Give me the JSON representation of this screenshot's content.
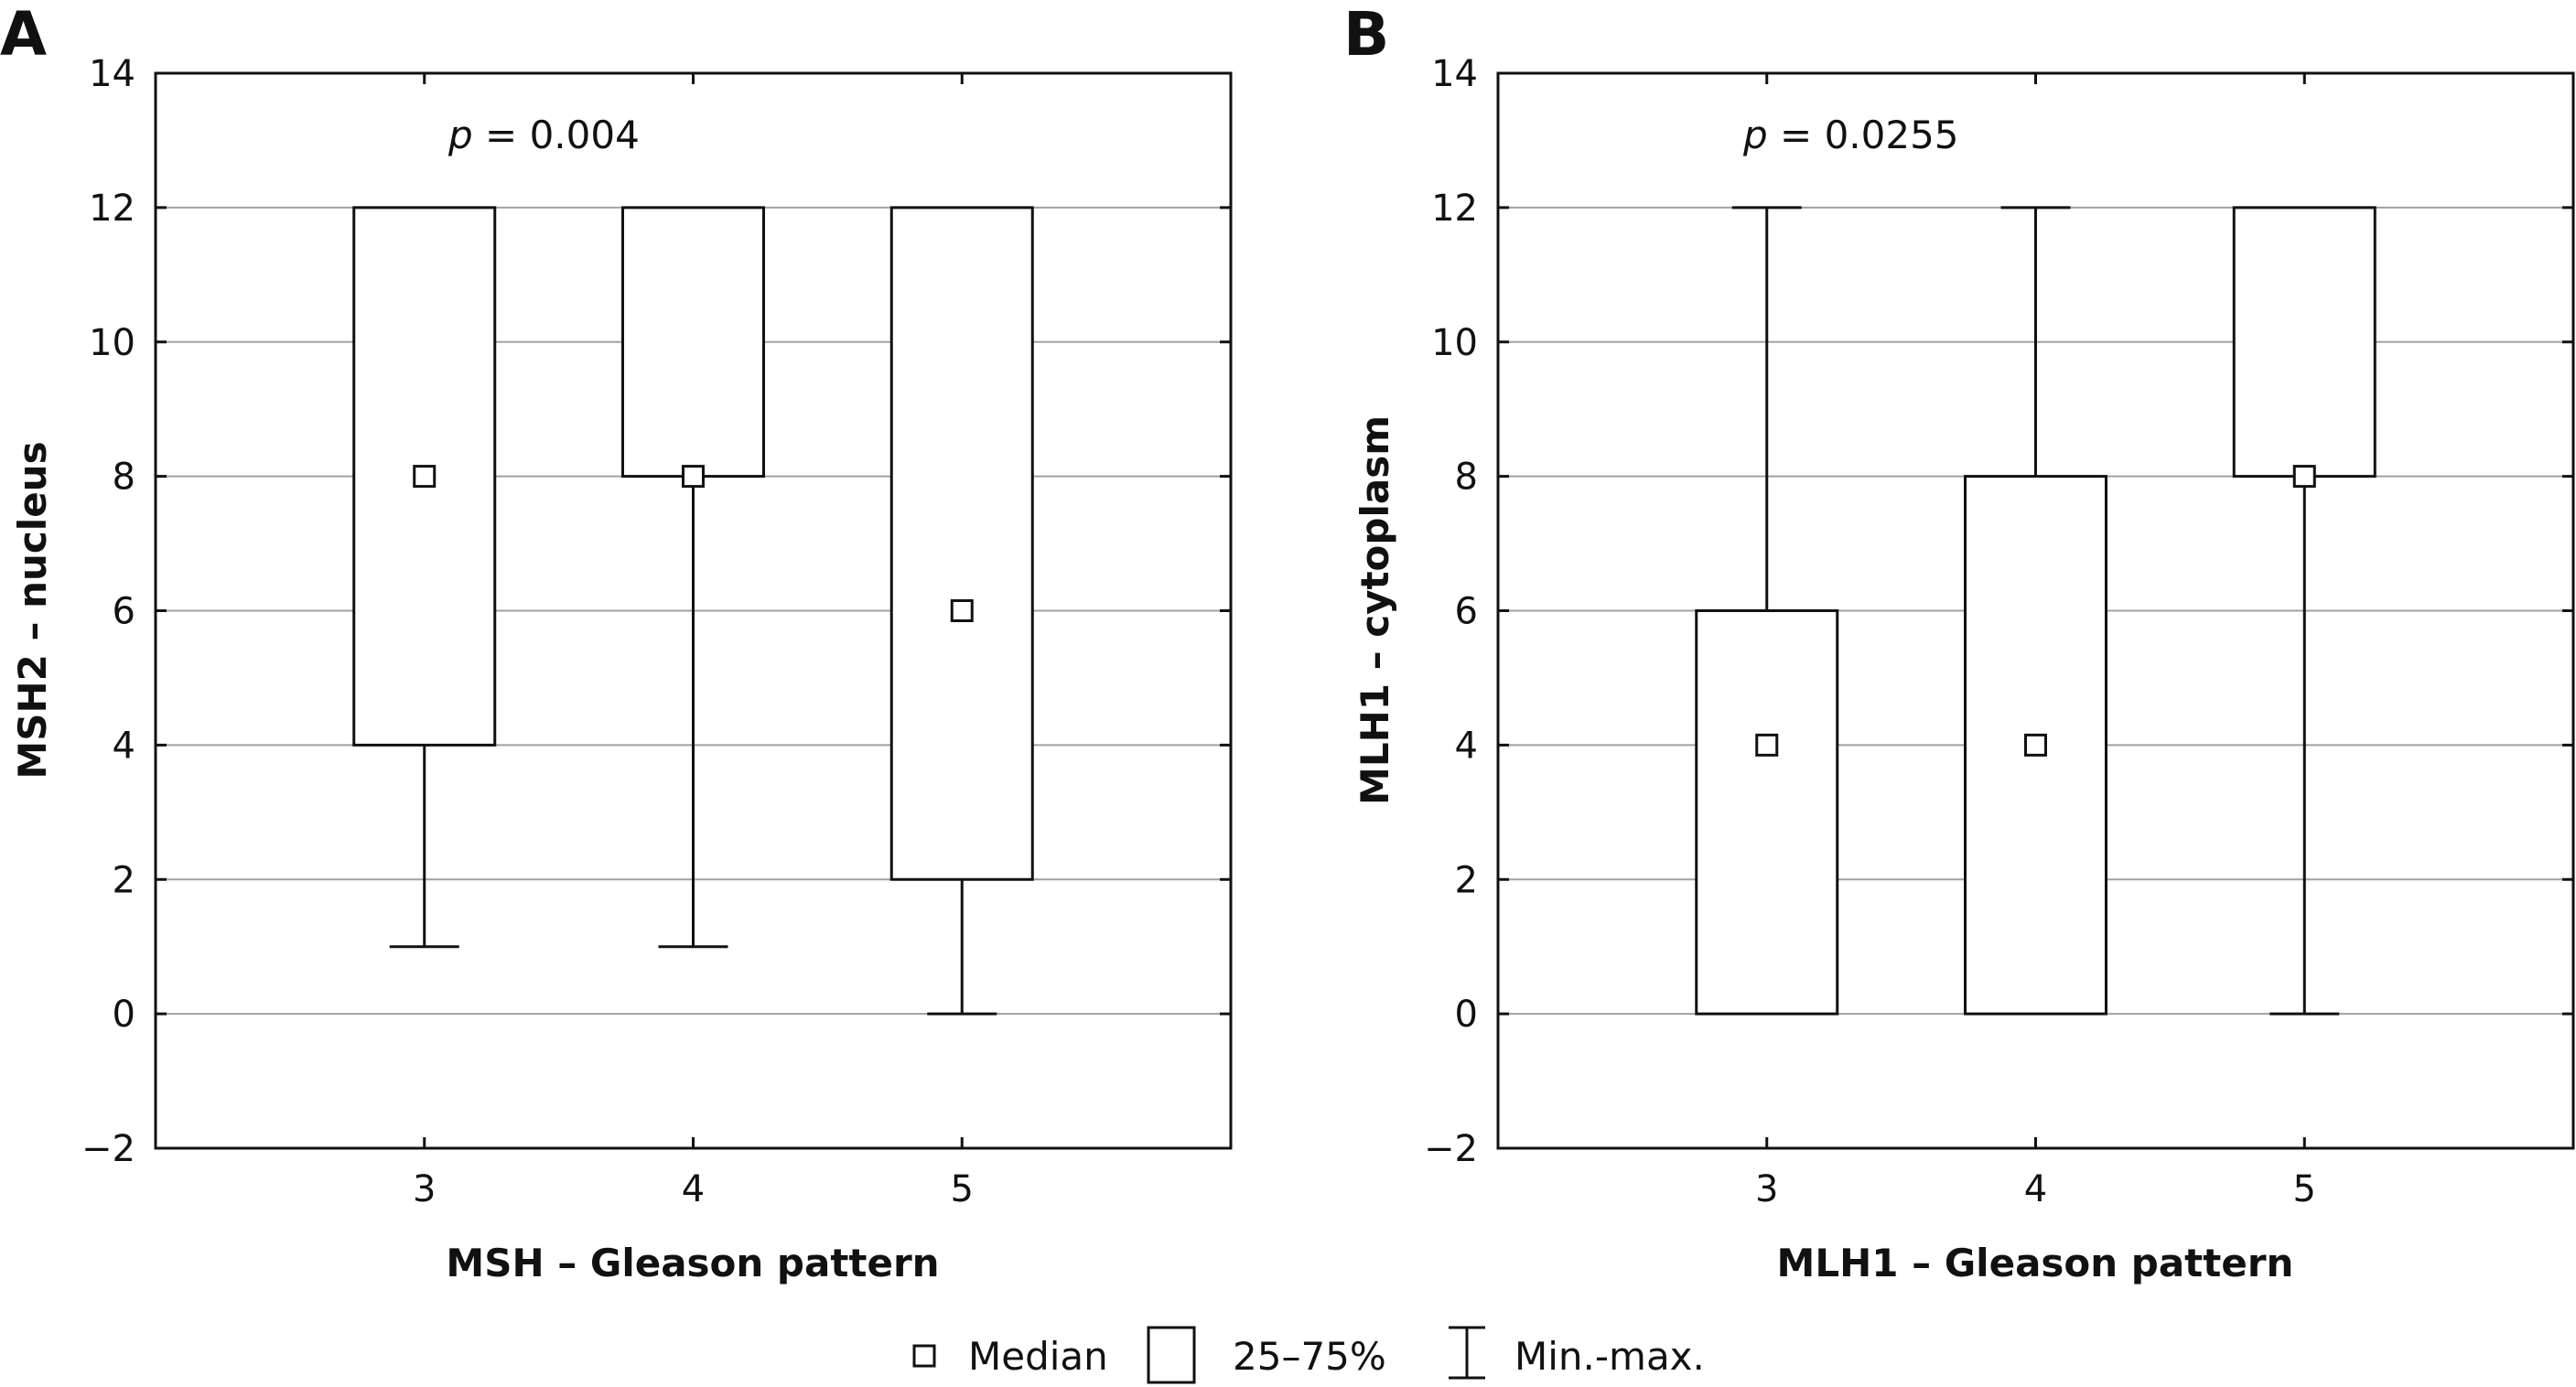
{
  "chart_data": [
    {
      "type": "boxplot",
      "panel_label": "A",
      "annotation": {
        "p_symbol": "p",
        "p_rest": " = 0.004"
      },
      "xlabel": "MSH – Gleason pattern",
      "ylabel": "MSH2 – nucleus",
      "ylim": [
        -2,
        14
      ],
      "yticks": [
        -2,
        0,
        2,
        4,
        6,
        8,
        10,
        12,
        14
      ],
      "ytick_labels": [
        "−2",
        "0",
        "2",
        "4",
        "6",
        "8",
        "10",
        "12",
        "14"
      ],
      "categories": [
        "3",
        "4",
        "5"
      ],
      "grid": true,
      "boxes": [
        {
          "category": "3",
          "min": 1,
          "q1": 4,
          "median": 8,
          "q3": 12,
          "max": 12
        },
        {
          "category": "4",
          "min": 1,
          "q1": 8,
          "median": 8,
          "q3": 12,
          "max": 12
        },
        {
          "category": "5",
          "min": 0,
          "q1": 2,
          "median": 6,
          "q3": 12,
          "max": 12
        }
      ]
    },
    {
      "type": "boxplot",
      "panel_label": "B",
      "annotation": {
        "p_symbol": "p",
        "p_rest": " = 0.0255"
      },
      "xlabel": "MLH1 – Gleason pattern",
      "ylabel": "MLH1 – cytoplasm",
      "ylim": [
        -2,
        14
      ],
      "yticks": [
        -2,
        0,
        2,
        4,
        6,
        8,
        10,
        12,
        14
      ],
      "ytick_labels": [
        "−2",
        "0",
        "2",
        "4",
        "6",
        "8",
        "10",
        "12",
        "14"
      ],
      "categories": [
        "3",
        "4",
        "5"
      ],
      "grid": true,
      "boxes": [
        {
          "category": "3",
          "min": 0,
          "q1": 0,
          "median": 4,
          "q3": 6,
          "max": 12
        },
        {
          "category": "4",
          "min": 0,
          "q1": 0,
          "median": 4,
          "q3": 8,
          "max": 12
        },
        {
          "category": "5",
          "min": 0,
          "q1": 8,
          "median": 8,
          "q3": 12,
          "max": 12
        }
      ]
    }
  ],
  "legend": {
    "placement": "bottom-center",
    "items": [
      {
        "key": "median",
        "label": "Median"
      },
      {
        "key": "box",
        "label": "25–75%"
      },
      {
        "key": "whisker",
        "label": "Min.-max."
      }
    ]
  },
  "colors": {
    "grid": "#a0a0a0",
    "line": "#111111",
    "box_fill": "#ffffff"
  }
}
